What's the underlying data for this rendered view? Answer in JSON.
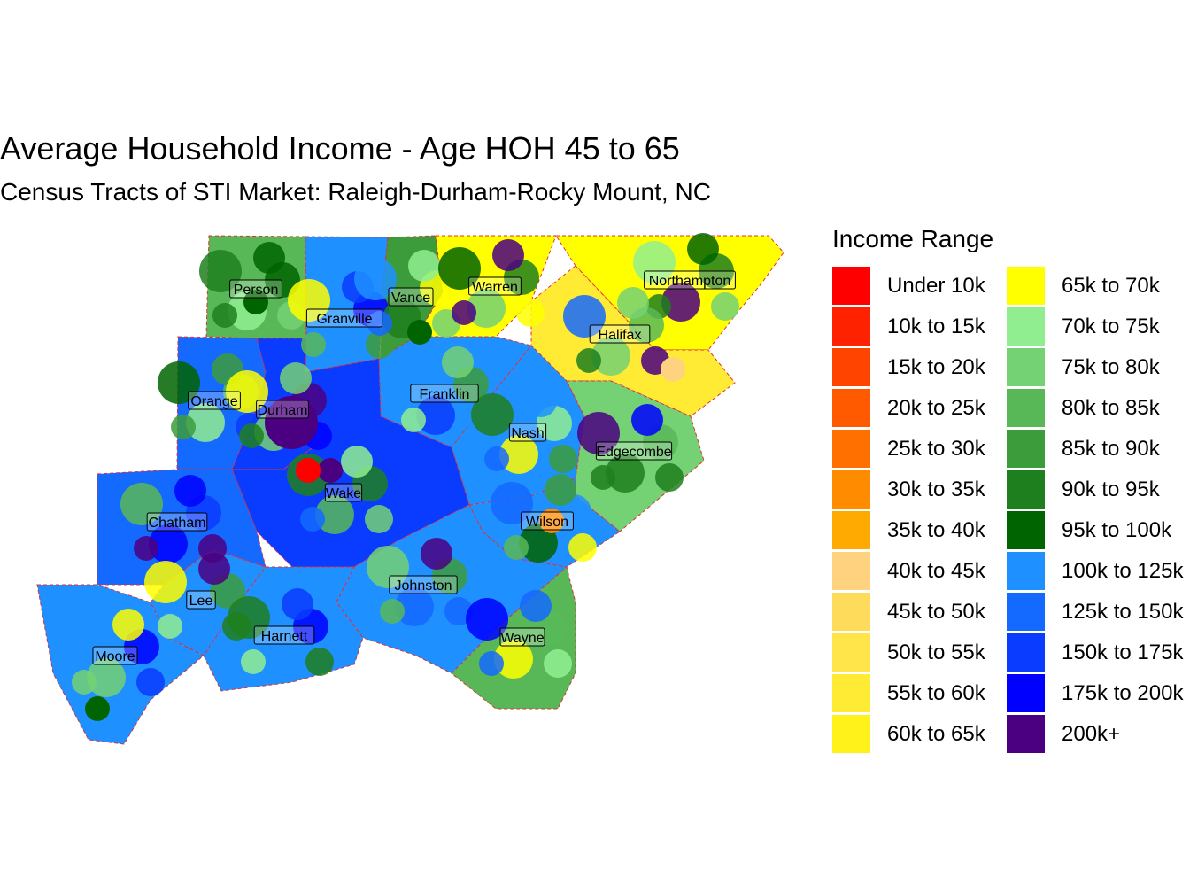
{
  "title": "Average Household Income - Age HOH 45 to 65",
  "subtitle": "Census Tracts of STI Market: Raleigh-Durham-Rocky Mount, NC",
  "legend": {
    "title": "Income Range",
    "items": [
      {
        "label": "Under 10k",
        "color": "#ff0000"
      },
      {
        "label": "10k to 15k",
        "color": "#ff2200"
      },
      {
        "label": "15k to 20k",
        "color": "#ff4400"
      },
      {
        "label": "20k to 25k",
        "color": "#ff5a00"
      },
      {
        "label": "25k to 30k",
        "color": "#ff7000"
      },
      {
        "label": "30k to 35k",
        "color": "#ff8c00"
      },
      {
        "label": "35k to 40k",
        "color": "#ffaa00"
      },
      {
        "label": "40k to 45k",
        "color": "#ffd27f"
      },
      {
        "label": "45k to 50k",
        "color": "#ffdb5c"
      },
      {
        "label": "50k to 55k",
        "color": "#ffe44a"
      },
      {
        "label": "55k to 60k",
        "color": "#ffeb33"
      },
      {
        "label": "60k to 65k",
        "color": "#fff21a"
      },
      {
        "label": "65k to 70k",
        "color": "#ffff00"
      },
      {
        "label": "70k to 75k",
        "color": "#90ee90"
      },
      {
        "label": "75k to 80k",
        "color": "#74d174"
      },
      {
        "label": "80k to 85k",
        "color": "#58b858"
      },
      {
        "label": "85k to 90k",
        "color": "#3c9c3c"
      },
      {
        "label": "90k to 95k",
        "color": "#1e7f1e"
      },
      {
        "label": "95k to 100k",
        "color": "#006400"
      },
      {
        "label": "100k to 125k",
        "color": "#1e90ff"
      },
      {
        "label": "125k to 150k",
        "color": "#1469ff"
      },
      {
        "label": "150k to 175k",
        "color": "#0a3cff"
      },
      {
        "label": "175k to 200k",
        "color": "#0000ff"
      },
      {
        "label": "200k+",
        "color": "#4b0082"
      }
    ]
  },
  "counties": [
    {
      "name": "Person",
      "tract_color": "#58b858"
    },
    {
      "name": "Granville",
      "tract_color": "#1e90ff"
    },
    {
      "name": "Vance",
      "tract_color": "#3c9c3c"
    },
    {
      "name": "Warren",
      "tract_color": "#ffff00"
    },
    {
      "name": "Northampton",
      "tract_color": "#ffff00"
    },
    {
      "name": "Halifax",
      "tract_color": "#ffeb33"
    },
    {
      "name": "Orange",
      "tract_color": "#1469ff"
    },
    {
      "name": "Durham",
      "tract_color": "#0a3cff"
    },
    {
      "name": "Franklin",
      "tract_color": "#1e90ff"
    },
    {
      "name": "Nash",
      "tract_color": "#1e90ff"
    },
    {
      "name": "Edgecombe",
      "tract_color": "#74d174"
    },
    {
      "name": "Wake",
      "tract_color": "#0a3cff"
    },
    {
      "name": "Chatham",
      "tract_color": "#1469ff"
    },
    {
      "name": "Wilson",
      "tract_color": "#1e90ff"
    },
    {
      "name": "Johnston",
      "tract_color": "#1e90ff"
    },
    {
      "name": "Lee",
      "tract_color": "#1e90ff"
    },
    {
      "name": "Harnett",
      "tract_color": "#1e90ff"
    },
    {
      "name": "Wayne",
      "tract_color": "#58b858"
    },
    {
      "name": "Moore",
      "tract_color": "#1e90ff"
    }
  ],
  "highlights": [
    {
      "county": "Durham",
      "color": "#4b0082"
    },
    {
      "county": "Wake",
      "color": "#4b0082"
    },
    {
      "county": "Wake",
      "color": "#ff0000"
    },
    {
      "county": "Wilson",
      "color": "#ff8c00"
    },
    {
      "county": "Halifax",
      "color": "#ffd27f"
    },
    {
      "county": "Person",
      "color": "#006400"
    },
    {
      "county": "Vance",
      "color": "#006400"
    },
    {
      "county": "Moore",
      "color": "#006400"
    }
  ]
}
